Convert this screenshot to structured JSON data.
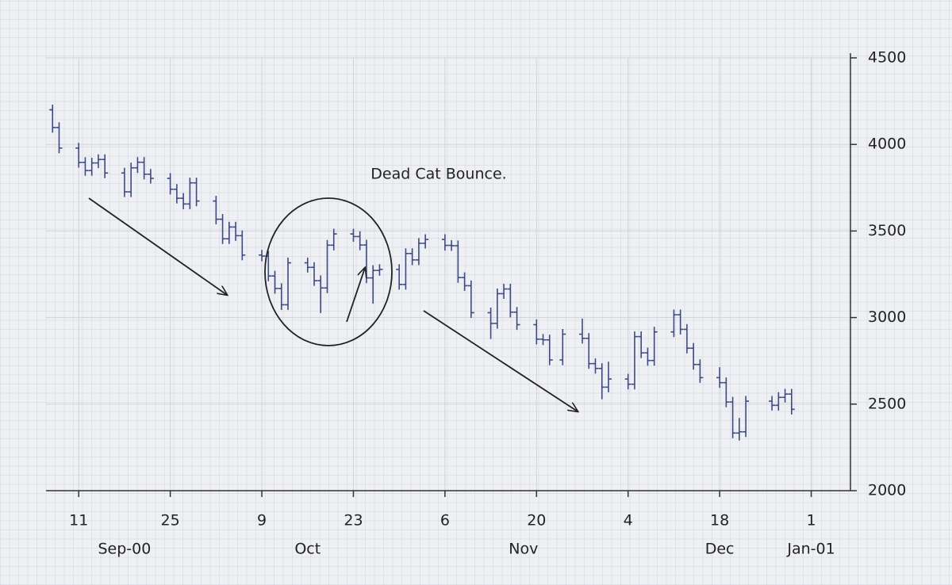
{
  "chart_data": {
    "type": "ohlc",
    "annotation": "Dead Cat Bounce.",
    "color": "#3c4a86",
    "grid": true,
    "x": [
      "2000-09-07",
      "2000-09-08",
      "2000-09-11",
      "2000-09-12",
      "2000-09-13",
      "2000-09-14",
      "2000-09-15",
      "2000-09-18",
      "2000-09-19",
      "2000-09-20",
      "2000-09-21",
      "2000-09-22",
      "2000-09-25",
      "2000-09-26",
      "2000-09-27",
      "2000-09-28",
      "2000-09-29",
      "2000-10-02",
      "2000-10-03",
      "2000-10-04",
      "2000-10-05",
      "2000-10-06",
      "2000-10-09",
      "2000-10-10",
      "2000-10-11",
      "2000-10-12",
      "2000-10-13",
      "2000-10-16",
      "2000-10-17",
      "2000-10-18",
      "2000-10-19",
      "2000-10-20",
      "2000-10-23",
      "2000-10-24",
      "2000-10-25",
      "2000-10-26",
      "2000-10-27",
      "2000-10-30",
      "2000-10-31",
      "2000-11-01",
      "2000-11-02",
      "2000-11-03",
      "2000-11-06",
      "2000-11-07",
      "2000-11-08",
      "2000-11-09",
      "2000-11-10",
      "2000-11-13",
      "2000-11-14",
      "2000-11-15",
      "2000-11-16",
      "2000-11-17",
      "2000-11-20",
      "2000-11-21",
      "2000-11-22",
      "2000-11-24",
      "2000-11-27",
      "2000-11-28",
      "2000-11-29",
      "2000-11-30",
      "2000-12-01",
      "2000-12-04",
      "2000-12-05",
      "2000-12-06",
      "2000-12-07",
      "2000-12-08",
      "2000-12-11",
      "2000-12-12",
      "2000-12-13",
      "2000-12-14",
      "2000-12-15",
      "2000-12-18",
      "2000-12-19",
      "2000-12-20",
      "2000-12-21",
      "2000-12-22",
      "2000-12-26",
      "2000-12-27",
      "2000-12-28",
      "2000-12-29"
    ],
    "open": [
      4200,
      4098,
      3979,
      3896,
      3849,
      3893,
      3913,
      3835,
      3726,
      3865,
      3897,
      3828,
      3804,
      3741,
      3689,
      3656,
      3778,
      3673,
      3568,
      3455,
      3523,
      3473,
      3361,
      3355,
      3240,
      3168,
      3074,
      3316,
      3290,
      3213,
      3171,
      3418,
      3483,
      3468,
      3419,
      3229,
      3272,
      3278,
      3191,
      3370,
      3333,
      3429,
      3451,
      3417,
      3415,
      3231,
      3184,
      3028,
      2966,
      3138,
      3165,
      3031,
      2959,
      2875,
      2871,
      2755,
      2904,
      2880,
      2734,
      2706,
      2598,
      2645,
      2615,
      2890,
      2796,
      2752,
      2917,
      3016,
      2932,
      2823,
      2729,
      2653,
      2624,
      2512,
      2333,
      2340,
      2517,
      2493,
      2539,
      2558
    ],
    "high": [
      4230,
      4128,
      4009,
      3926,
      3923,
      3943,
      3943,
      3865,
      3895,
      3927,
      3927,
      3858,
      3834,
      3771,
      3719,
      3808,
      3808,
      3703,
      3598,
      3553,
      3553,
      3503,
      3391,
      3385,
      3270,
      3198,
      3346,
      3346,
      3320,
      3243,
      3448,
      3513,
      3513,
      3498,
      3449,
      3302,
      3308,
      3308,
      3400,
      3400,
      3459,
      3481,
      3481,
      3447,
      3445,
      3261,
      3214,
      3058,
      3168,
      3195,
      3195,
      3061,
      2989,
      2905,
      2901,
      2934,
      2994,
      2910,
      2764,
      2736,
      2745,
      2675,
      2920,
      2920,
      2826,
      2947,
      3046,
      3046,
      2962,
      2853,
      2759,
      2713,
      2654,
      2542,
      2420,
      2547,
      2547,
      2569,
      2588,
      2588
    ],
    "low": [
      4068,
      3949,
      3866,
      3819,
      3819,
      3863,
      3805,
      3696,
      3696,
      3835,
      3798,
      3774,
      3711,
      3659,
      3626,
      3626,
      3643,
      3538,
      3425,
      3425,
      3443,
      3331,
      3325,
      3210,
      3138,
      3044,
      3044,
      3260,
      3183,
      3026,
      3141,
      3388,
      3438,
      3389,
      3199,
      3080,
      3242,
      3161,
      3161,
      3303,
      3303,
      3399,
      3387,
      3385,
      3201,
      3154,
      2998,
      2876,
      2936,
      3108,
      3001,
      2929,
      2845,
      2841,
      2725,
      2725,
      2850,
      2704,
      2676,
      2528,
      2568,
      2585,
      2585,
      2766,
      2722,
      2722,
      2887,
      2902,
      2793,
      2699,
      2623,
      2594,
      2482,
      2303,
      2290,
      2310,
      2463,
      2463,
      2509,
      2440
    ],
    "close": [
      4098,
      3979,
      3896,
      3849,
      3893,
      3913,
      3835,
      3726,
      3865,
      3897,
      3828,
      3804,
      3741,
      3689,
      3656,
      3778,
      3673,
      3568,
      3455,
      3523,
      3473,
      3361,
      3355,
      3240,
      3168,
      3074,
      3316,
      3290,
      3213,
      3171,
      3418,
      3483,
      3468,
      3419,
      3229,
      3272,
      3278,
      3191,
      3370,
      3333,
      3429,
      3451,
      3417,
      3415,
      3231,
      3184,
      3028,
      2966,
      3138,
      3165,
      3031,
      2959,
      2875,
      2871,
      2755,
      2904,
      2880,
      2734,
      2706,
      2598,
      2645,
      2615,
      2890,
      2796,
      2752,
      2917,
      3016,
      2932,
      2823,
      2729,
      2653,
      2624,
      2512,
      2333,
      2340,
      2517,
      2493,
      2539,
      2558,
      2470
    ],
    "xlim": [
      "2000-09-06",
      "2001-01-07"
    ],
    "xticks": [
      {
        "value": "2000-09-11",
        "label": "11"
      },
      {
        "value": "2000-09-25",
        "label": "25"
      },
      {
        "value": "2000-10-09",
        "label": "9"
      },
      {
        "value": "2000-10-23",
        "label": "23"
      },
      {
        "value": "2000-11-06",
        "label": "6"
      },
      {
        "value": "2000-11-20",
        "label": "20"
      },
      {
        "value": "2000-12-04",
        "label": "4"
      },
      {
        "value": "2000-12-18",
        "label": "18"
      },
      {
        "value": "2001-01-01",
        "label": "1"
      }
    ],
    "month_labels": [
      {
        "value": "2000-09-18",
        "label": "Sep-00"
      },
      {
        "value": "2000-10-16",
        "label": "Oct"
      },
      {
        "value": "2000-11-18",
        "label": "Nov"
      },
      {
        "value": "2000-12-18",
        "label": "Dec"
      },
      {
        "value": "2001-01-01",
        "label": "Jan-01"
      }
    ],
    "ylim": [
      2000,
      4500
    ],
    "yticks": [
      2000,
      2500,
      3000,
      3500,
      4000,
      4500
    ]
  }
}
